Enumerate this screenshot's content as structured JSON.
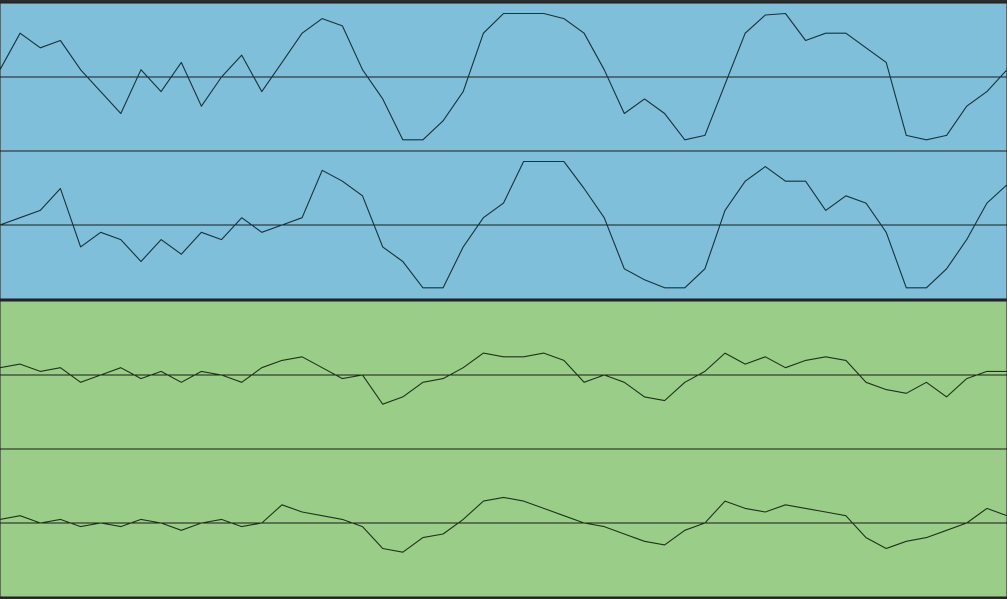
{
  "tracks": [
    {
      "color": "#7fbfda",
      "wave_color": "#16323d",
      "channels": [
        [
          0.1,
          0.6,
          0.4,
          0.5,
          0.1,
          -0.2,
          -0.5,
          0.1,
          -0.2,
          0.2,
          -0.4,
          0.0,
          0.3,
          -0.2,
          0.2,
          0.6,
          0.8,
          0.7,
          0.1,
          -0.3,
          -0.86,
          -0.86,
          -0.6,
          -0.2,
          0.6,
          0.87,
          0.87,
          0.87,
          0.8,
          0.6,
          0.1,
          -0.5,
          -0.3,
          -0.5,
          -0.86,
          -0.8,
          -0.1,
          0.6,
          0.85,
          0.87,
          0.5,
          0.6,
          0.6,
          0.4,
          0.2,
          -0.8,
          -0.86,
          -0.8,
          -0.4,
          -0.2,
          0.1
        ],
        [
          0.0,
          0.1,
          0.2,
          0.5,
          -0.3,
          -0.1,
          -0.2,
          -0.5,
          -0.2,
          -0.4,
          -0.1,
          -0.2,
          0.1,
          -0.1,
          0.0,
          0.1,
          0.75,
          0.6,
          0.4,
          -0.3,
          -0.5,
          -0.86,
          -0.86,
          -0.3,
          0.1,
          0.3,
          0.87,
          0.87,
          0.87,
          0.5,
          0.1,
          -0.6,
          -0.75,
          -0.86,
          -0.86,
          -0.6,
          0.2,
          0.6,
          0.8,
          0.6,
          0.6,
          0.2,
          0.4,
          0.3,
          -0.1,
          -0.86,
          -0.86,
          -0.6,
          -0.2,
          0.3,
          0.55
        ]
      ]
    },
    {
      "color": "#9ace88",
      "wave_color": "#1d3318",
      "channels": [
        [
          0.1,
          0.15,
          0.05,
          0.1,
          -0.1,
          0.0,
          0.1,
          -0.05,
          0.05,
          -0.1,
          0.05,
          0.0,
          -0.1,
          0.1,
          0.2,
          0.25,
          0.1,
          -0.05,
          0.0,
          -0.4,
          -0.3,
          -0.1,
          -0.05,
          0.1,
          0.3,
          0.25,
          0.25,
          0.3,
          0.2,
          -0.1,
          0.0,
          -0.1,
          -0.3,
          -0.35,
          -0.1,
          0.05,
          0.3,
          0.15,
          0.25,
          0.1,
          0.2,
          0.25,
          0.2,
          -0.1,
          -0.2,
          -0.25,
          -0.1,
          -0.3,
          -0.05,
          0.05,
          0.05
        ],
        [
          0.05,
          0.1,
          0.0,
          0.05,
          -0.05,
          0.0,
          -0.05,
          0.05,
          0.0,
          -0.1,
          0.0,
          0.05,
          -0.05,
          0.0,
          0.25,
          0.15,
          0.1,
          0.05,
          -0.05,
          -0.35,
          -0.4,
          -0.2,
          -0.15,
          0.05,
          0.3,
          0.35,
          0.3,
          0.2,
          0.1,
          0.0,
          -0.05,
          -0.15,
          -0.25,
          -0.3,
          -0.1,
          0.0,
          0.3,
          0.2,
          0.15,
          0.25,
          0.2,
          0.15,
          0.1,
          -0.2,
          -0.35,
          -0.25,
          -0.2,
          -0.1,
          0.0,
          0.2,
          0.1
        ]
      ]
    }
  ]
}
